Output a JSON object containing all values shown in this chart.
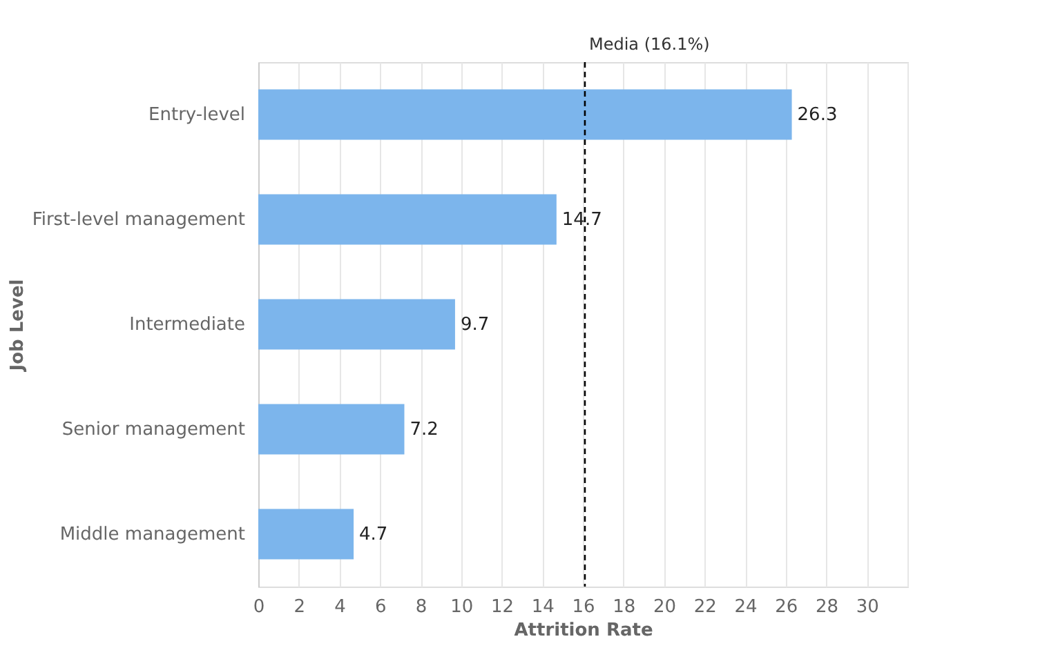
{
  "chart_data": {
    "type": "bar",
    "orientation": "horizontal",
    "xlabel": "Attrition Rate",
    "ylabel": "Job Level",
    "categories": [
      "Entry-level",
      "First-level management",
      "Intermediate",
      "Senior management",
      "Middle management"
    ],
    "values": [
      26.3,
      14.7,
      9.7,
      7.2,
      4.7
    ],
    "color": "#7cb5ec",
    "data_labels": true,
    "xlim": [
      0,
      32
    ],
    "xticks": [
      0,
      2,
      4,
      6,
      8,
      10,
      12,
      14,
      16,
      18,
      20,
      22,
      24,
      26,
      28,
      30,
      {
        "value": 32,
        "label": null
      }
    ],
    "grid": "x",
    "ref_lines": [
      {
        "axis": "x",
        "value": 16.1,
        "label": "Media (16.1%)",
        "color": "#000000",
        "line_style": "dashed"
      }
    ]
  }
}
